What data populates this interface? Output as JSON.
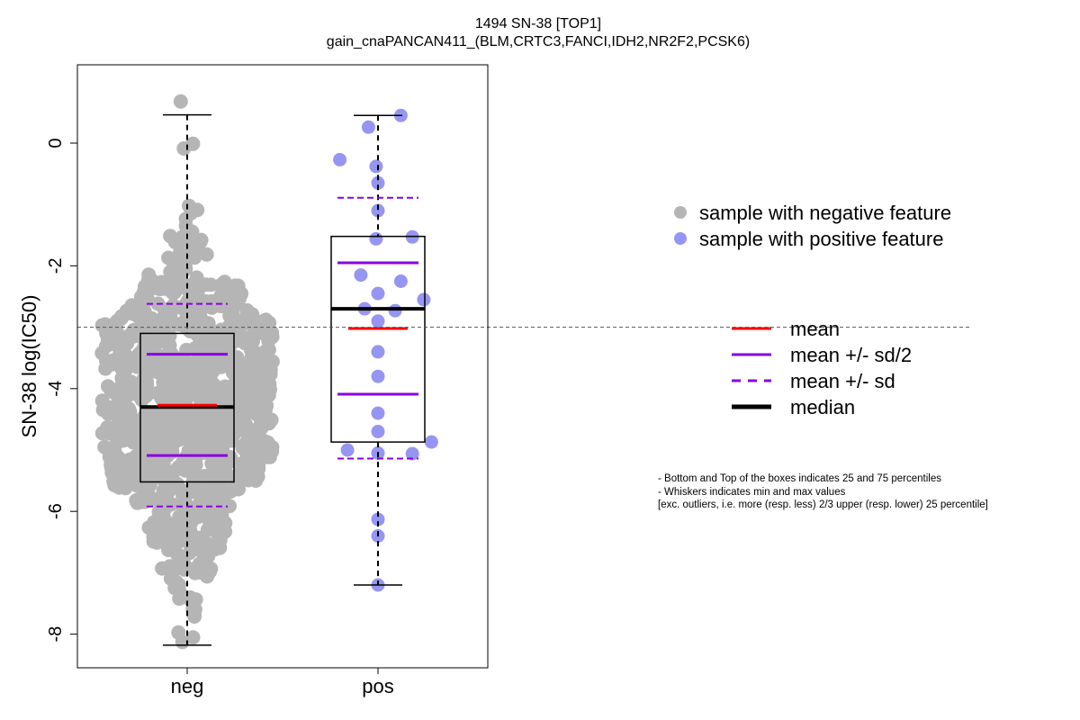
{
  "chart_data": {
    "type": "scatter",
    "title": "1494 SN-38 [TOP1]",
    "subtitle": "gain_cnaPANCAN411_(BLM,CRTC3,FANCI,IDH2,NR2F2,PCSK6)",
    "ylabel": "SN-38 log(IC50)",
    "xlabel": "",
    "categories": [
      "neg",
      "pos"
    ],
    "ylim": [
      -8.5,
      1.3
    ],
    "yticks": [
      -8,
      -6,
      -4,
      -2,
      0
    ],
    "reference_line": -3.0,
    "groups": [
      {
        "name": "neg",
        "color": "#b5b5b5",
        "n": 950,
        "box": {
          "q1": -5.52,
          "median": -4.3,
          "q3": -3.1,
          "whisker_low": -8.18,
          "whisker_high": 0.46
        },
        "mean": -4.27,
        "mean_minus_half_sd": -5.09,
        "mean_plus_half_sd": -3.44,
        "mean_minus_sd": -5.92,
        "mean_plus_sd": -2.62,
        "min": -8.2,
        "max": 0.9
      },
      {
        "name": "pos",
        "color": "#9696f2",
        "box": {
          "q1": -4.87,
          "median": -2.7,
          "q3": -1.52,
          "whisker_low": -7.2,
          "whisker_high": 0.45
        },
        "mean": -3.02,
        "mean_minus_half_sd": -4.09,
        "mean_plus_half_sd": -1.95,
        "mean_minus_sd": -5.14,
        "mean_plus_sd": -0.89,
        "points": [
          {
            "x": 0.95,
            "y": 0.26
          },
          {
            "x": 1.12,
            "y": 0.45
          },
          {
            "x": 0.8,
            "y": -0.27
          },
          {
            "x": 0.99,
            "y": -0.38
          },
          {
            "x": 1.0,
            "y": -0.65
          },
          {
            "x": 1.0,
            "y": -1.1
          },
          {
            "x": 0.99,
            "y": -1.56
          },
          {
            "x": 1.18,
            "y": -1.53
          },
          {
            "x": 0.91,
            "y": -2.15
          },
          {
            "x": 1.12,
            "y": -2.25
          },
          {
            "x": 1.0,
            "y": -2.45
          },
          {
            "x": 1.24,
            "y": -2.55
          },
          {
            "x": 0.93,
            "y": -2.7
          },
          {
            "x": 1.09,
            "y": -2.73
          },
          {
            "x": 1.0,
            "y": -2.9
          },
          {
            "x": 1.0,
            "y": -3.4
          },
          {
            "x": 1.0,
            "y": -3.8
          },
          {
            "x": 1.0,
            "y": -4.4
          },
          {
            "x": 1.0,
            "y": -4.7
          },
          {
            "x": 1.28,
            "y": -4.87
          },
          {
            "x": 0.84,
            "y": -5.0
          },
          {
            "x": 1.0,
            "y": -5.05
          },
          {
            "x": 1.18,
            "y": -5.06
          },
          {
            "x": 1.0,
            "y": -6.13
          },
          {
            "x": 1.0,
            "y": -6.4
          },
          {
            "x": 1.0,
            "y": -7.2
          }
        ]
      }
    ],
    "legend_points": [
      {
        "label": "sample with negative feature",
        "color": "#b5b5b5"
      },
      {
        "label": "sample with positive feature",
        "color": "#9696f2"
      }
    ],
    "legend_lines": [
      {
        "label": "mean",
        "color": "#ff0000",
        "style": "solid"
      },
      {
        "label": "mean +/- sd/2",
        "color": "#8b00e0",
        "style": "solid"
      },
      {
        "label": "mean +/- sd",
        "color": "#8b00e0",
        "style": "dashed"
      },
      {
        "label": "median",
        "color": "#000000",
        "style": "solid-thick"
      }
    ],
    "footnotes": [
      "- Bottom and Top of the boxes indicates 25 and 75 percentiles",
      "- Whiskers indicates min and max values",
      "[exc. outliers, i.e. more (resp. less) 2/3 upper (resp. lower) 25 percentile]"
    ],
    "grid": false,
    "legend_position": "right"
  }
}
